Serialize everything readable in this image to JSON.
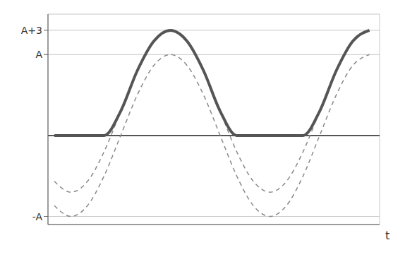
{
  "chart_data": {
    "type": "line",
    "x_label": "t",
    "x": [
      -11,
      -8.4,
      -5.8,
      -3.2,
      -0.6,
      2,
      4.6,
      7.2,
      9.8,
      12.4,
      15,
      17.6,
      20.2,
      22.8,
      25.4,
      28,
      30.6,
      33.2,
      35.8,
      38.4
    ],
    "series": [
      {
        "color": "#8a8a8a",
        "line_style": "dashed",
        "values": [
          -8.66,
          -10,
          -8.66,
          -5,
          0,
          5,
          8.66,
          10,
          8.66,
          5,
          0,
          -5,
          -8.66,
          -10,
          -8.66,
          -5,
          0,
          5,
          8.66,
          10
        ]
      },
      {
        "color": "#8a8a8a",
        "line_style": "dashed",
        "values": [
          -5.66,
          -7,
          -5.66,
          -2,
          3,
          8,
          11.66,
          13,
          11.66,
          8,
          3,
          -2,
          -5.66,
          -7,
          -5.66,
          -2,
          3,
          8,
          11.66,
          13
        ]
      },
      {
        "color": "#555555",
        "line_style": "solid",
        "values": [
          0,
          0,
          0,
          0,
          3,
          8,
          11.66,
          13,
          11.66,
          8,
          3,
          0,
          0,
          0,
          0,
          0,
          3,
          8,
          11.66,
          13
        ]
      }
    ],
    "xlim": [
      -12,
      40
    ],
    "xticks": [
      0
    ],
    "ylim": [
      -11,
      15
    ],
    "yticks": [
      {
        "value": -10,
        "label": "-A"
      },
      {
        "value": 10,
        "label": "A"
      },
      {
        "value": 13,
        "label": "A+3"
      }
    ],
    "tick_labels": "y",
    "grid": true
  }
}
